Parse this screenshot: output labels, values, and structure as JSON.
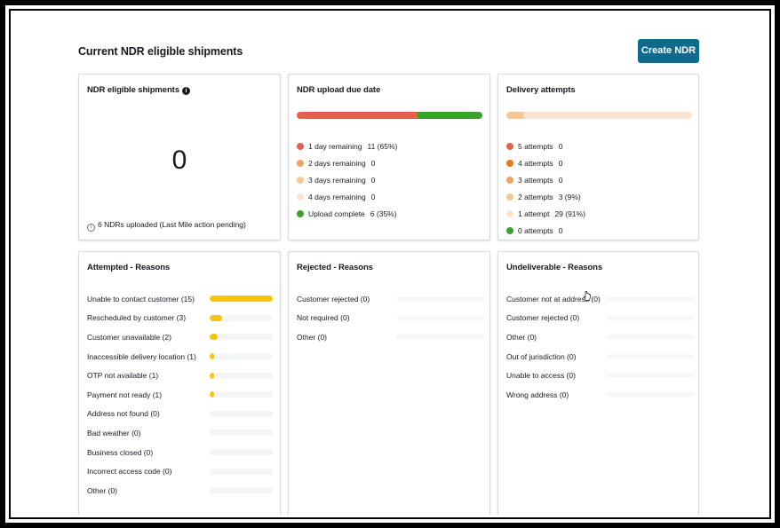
{
  "header": {
    "title": "Current NDR eligible shipments",
    "create_label": "Create NDR"
  },
  "eligible": {
    "title": "NDR eligible shipments",
    "info_icon": "info-icon",
    "count": "0",
    "footnote": "6 NDRs uploaded (Last Mile action pending)"
  },
  "upload_due": {
    "title": "NDR upload due date",
    "segments": [
      {
        "color": "#e8604c",
        "fraction": 0.65
      },
      {
        "color": "#3aa12a",
        "fraction": 0.35
      }
    ],
    "legend": [
      {
        "label": "1 day remaining",
        "value": "11 (65%)",
        "color": "#e8604c"
      },
      {
        "label": "2 days remaining",
        "value": "0",
        "color": "#f0a35e"
      },
      {
        "label": "3 days remaining",
        "value": "0",
        "color": "#f5c796"
      },
      {
        "label": "4 days remaining",
        "value": "0",
        "color": "#fbe3cf"
      },
      {
        "label": "Upload complete",
        "value": "6 (35%)",
        "color": "#3aa12a"
      }
    ]
  },
  "attempts": {
    "title": "Delivery attempts",
    "segments": [
      {
        "color": "#f5c796",
        "fraction": 0.09
      },
      {
        "color": "#fbe3cf",
        "fraction": 0.91
      }
    ],
    "legend": [
      {
        "label": "5 attempts",
        "value": "0",
        "color": "#e8604c"
      },
      {
        "label": "4 attempts",
        "value": "0",
        "color": "#ec7a12"
      },
      {
        "label": "3 attempts",
        "value": "0",
        "color": "#f0a35e"
      },
      {
        "label": "2 attempts",
        "value": "3 (9%)",
        "color": "#f5c796"
      },
      {
        "label": "1 attempt",
        "value": "29 (91%)",
        "color": "#fbe3cf"
      },
      {
        "label": "0 attempts",
        "value": "0",
        "color": "#3aa12a"
      }
    ]
  },
  "attempted": {
    "title": "Attempted - Reasons",
    "bar_color": "#f2c80f",
    "max": 15,
    "rows": [
      {
        "label": "Unable to contact customer (15)",
        "value": 15
      },
      {
        "label": "Rescheduled by customer (3)",
        "value": 3
      },
      {
        "label": "Customer unavailable (2)",
        "value": 2
      },
      {
        "label": "Inaccessible delivery location (1)",
        "value": 1
      },
      {
        "label": "OTP not available (1)",
        "value": 1
      },
      {
        "label": "Payment not ready (1)",
        "value": 1
      },
      {
        "label": "Address not found (0)",
        "value": 0
      },
      {
        "label": "Bad weather (0)",
        "value": 0
      },
      {
        "label": "Business closed (0)",
        "value": 0
      },
      {
        "label": "Incorrect access code (0)",
        "value": 0
      },
      {
        "label": "Other (0)",
        "value": 0
      }
    ]
  },
  "rejected": {
    "title": "Rejected - Reasons",
    "rows": [
      {
        "label": "Customer rejected (0)"
      },
      {
        "label": "Not required (0)"
      },
      {
        "label": "Other (0)"
      }
    ]
  },
  "undeliverable": {
    "title": "Undeliverable - Reasons",
    "rows": [
      {
        "label": "Customer not at address (0)"
      },
      {
        "label": "Customer rejected (0)"
      },
      {
        "label": "Other (0)"
      },
      {
        "label": "Out of jurisdiction (0)"
      },
      {
        "label": "Unable to access (0)"
      },
      {
        "label": "Wrong address (0)"
      }
    ]
  }
}
